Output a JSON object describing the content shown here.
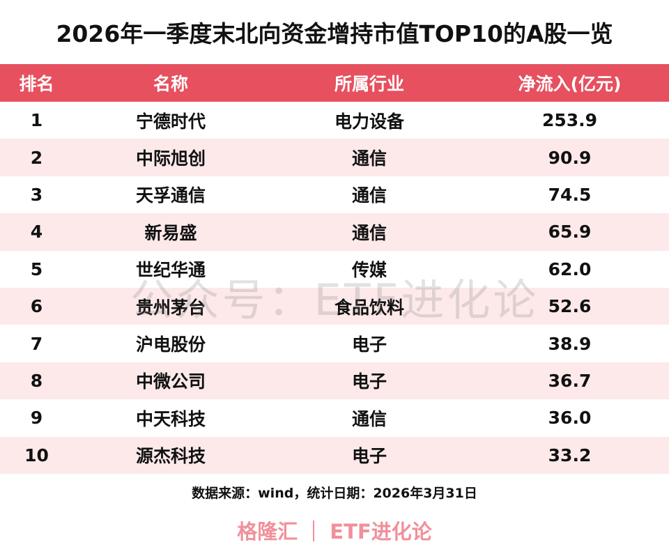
{
  "header": {
    "title": "2026年一季度末北向资金增持市值TOP10的A股一览"
  },
  "table": {
    "columns": [
      "排名",
      "名称",
      "所属行业",
      "净流入(亿元)"
    ],
    "rows": [
      [
        "1",
        "宁德时代",
        "电力设备",
        "253.9"
      ],
      [
        "2",
        "中际旭创",
        "通信",
        "90.9"
      ],
      [
        "3",
        "天孚通信",
        "通信",
        "74.5"
      ],
      [
        "4",
        "新易盛",
        "通信",
        "65.9"
      ],
      [
        "5",
        "世纪华通",
        "传媒",
        "62.0"
      ],
      [
        "6",
        "贵州茅台",
        "食品饮料",
        "52.6"
      ],
      [
        "7",
        "沪电股份",
        "电子",
        "38.9"
      ],
      [
        "8",
        "中微公司",
        "电子",
        "36.7"
      ],
      [
        "9",
        "中天科技",
        "通信",
        "36.0"
      ],
      [
        "10",
        "源杰科技",
        "电子",
        "33.2"
      ]
    ]
  },
  "watermark": "公众号：ETF进化论",
  "source_note": "数据来源：wind，统计日期：2026年3月31日",
  "footer": {
    "left": "格隆汇",
    "right": "ETF进化论"
  }
}
